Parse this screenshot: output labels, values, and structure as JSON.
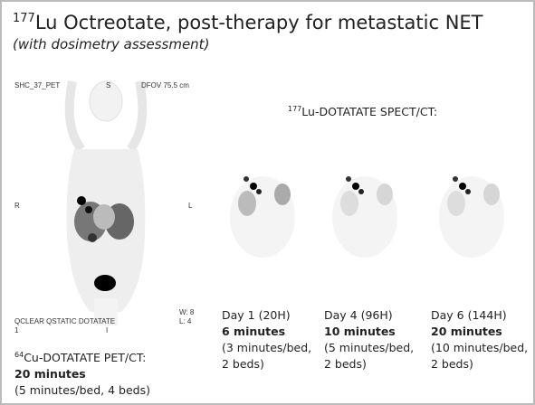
{
  "header": {
    "title_sup": "177",
    "title": "Lu Octreotate, post-therapy for metastatic NET",
    "subtitle": "(with dosimetry assessment)"
  },
  "pet_image": {
    "labels": {
      "top_left": "SHC_37_PET",
      "top_center": "S",
      "top_right": "DFOV 75.5 cm",
      "left": "R",
      "right": "L",
      "bottom_left": "QCLEAR QSTATIC DOTATATE",
      "bottom_left_2": "1",
      "bottom_center": "I",
      "bottom_right_1": "W: 8",
      "bottom_right_2": "L: 4"
    }
  },
  "pet_caption": {
    "sup": "64",
    "title": "Cu-DOTATATE PET/CT:",
    "duration": "20 minutes",
    "detail": "(5 minutes/bed, 4 beds)"
  },
  "spect": {
    "sup": "177",
    "heading": "Lu-DOTATATE SPECT/CT:",
    "panels": [
      {
        "day": "Day 1 (20H)",
        "duration": "6 minutes",
        "detail_1": "(3 minutes/bed,",
        "detail_2": "2 beds)"
      },
      {
        "day": "Day 4 (96H)",
        "duration": "10 minutes",
        "detail_1": "(5 minutes/bed,",
        "detail_2": "2 beds)"
      },
      {
        "day": "Day 6 (144H)",
        "duration": "20 minutes",
        "detail_1": "(10 minutes/bed,",
        "detail_2": "2 beds)"
      }
    ]
  }
}
